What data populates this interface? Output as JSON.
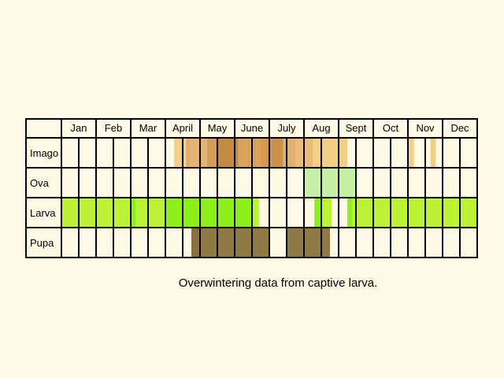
{
  "months": [
    "Jan",
    "Feb",
    "Mar",
    "April",
    "May",
    "June",
    "July",
    "Aug",
    "Sept",
    "Oct",
    "Nov",
    "Dec"
  ],
  "rows": [
    {
      "label": "Imago",
      "segments": [
        {
          "start": 6.5,
          "end": 7.2,
          "color": "#f2cf85"
        },
        {
          "start": 7.2,
          "end": 7.4,
          "color": "#deaa66"
        },
        {
          "start": 7.4,
          "end": 8.4,
          "color": "#e6b373"
        },
        {
          "start": 8.4,
          "end": 9.0,
          "color": "#d79d5a"
        },
        {
          "start": 9.0,
          "end": 10.2,
          "color": "#c38a44"
        },
        {
          "start": 10.2,
          "end": 11.5,
          "color": "#d9a35d"
        },
        {
          "start": 11.5,
          "end": 12.1,
          "color": "#d49a54"
        },
        {
          "start": 12.1,
          "end": 12.8,
          "color": "#c8904a"
        },
        {
          "start": 12.8,
          "end": 13.5,
          "color": "#e3af6c"
        },
        {
          "start": 13.5,
          "end": 14.5,
          "color": "#ebbb7a"
        },
        {
          "start": 14.5,
          "end": 16.5,
          "color": "#f2cf85"
        },
        {
          "start": 20.0,
          "end": 20.35,
          "color": "#f2cf85"
        },
        {
          "start": 21.3,
          "end": 21.6,
          "color": "#f2cf85"
        }
      ]
    },
    {
      "label": "Ova",
      "segments": [
        {
          "start": 14.0,
          "end": 17.0,
          "color": "#c5f0a5"
        }
      ]
    },
    {
      "label": "Larva",
      "segments": [
        {
          "start": 0.0,
          "end": 4.0,
          "color": "#bdf236"
        },
        {
          "start": 4.0,
          "end": 4.3,
          "color": "#8ef01a"
        },
        {
          "start": 4.3,
          "end": 6.0,
          "color": "#bdf236"
        },
        {
          "start": 6.0,
          "end": 11.0,
          "color": "#8ef01a"
        },
        {
          "start": 11.0,
          "end": 11.4,
          "color": "#bdf236"
        },
        {
          "start": 14.6,
          "end": 15.0,
          "color": "#8ef01a"
        },
        {
          "start": 15.0,
          "end": 15.6,
          "color": "#bdf236"
        },
        {
          "start": 16.5,
          "end": 16.8,
          "color": "#8ef01a"
        },
        {
          "start": 16.8,
          "end": 24.0,
          "color": "#bdf236"
        }
      ]
    },
    {
      "label": "Pupa",
      "segments": [
        {
          "start": 7.5,
          "end": 8.0,
          "color": "#8a7040"
        },
        {
          "start": 8.0,
          "end": 12.0,
          "color": "#8f7a45"
        },
        {
          "start": 13.0,
          "end": 15.5,
          "color": "#8f7a45"
        }
      ]
    }
  ],
  "caption": "Overwintering data from captive larva."
}
